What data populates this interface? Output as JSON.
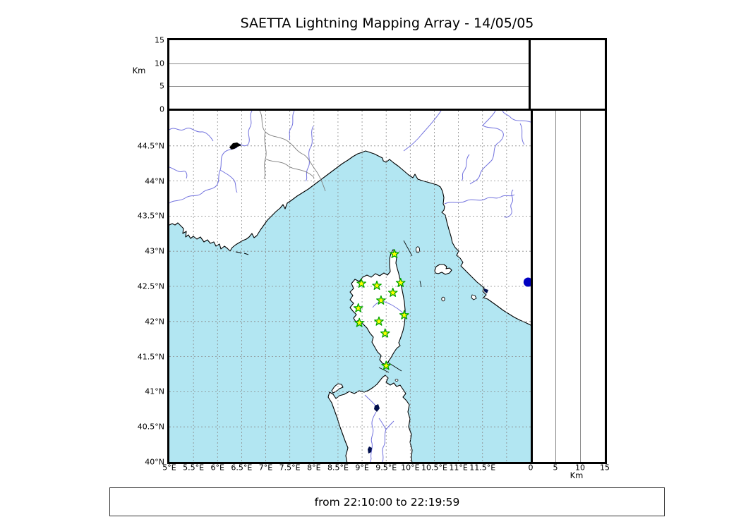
{
  "title": "SAETTA Lightning Mapping Array - 14/05/05",
  "time_label": "from 22:10:00 to 22:19:59",
  "axes": {
    "altitude_label_left": "Km",
    "altitude_label_bottom": "Km",
    "altitude_max": 15,
    "altitude_ticks_left": [
      "15",
      "10",
      "5",
      "0"
    ],
    "altitude_ticks_bottom": [
      "0",
      "5",
      "10",
      "15"
    ],
    "altitude_gridline_values": [
      5,
      10
    ],
    "longitude_ticks": [
      "5°E",
      "5.5°E",
      "6°E",
      "6.5°E",
      "7°E",
      "7.5°E",
      "8°E",
      "8.5°E",
      "9°E",
      "9.5°E",
      "10°E",
      "10.5°E",
      "11°E",
      "11.5°E"
    ],
    "latitude_ticks": [
      "44.5°N",
      "44°N",
      "43.5°N",
      "43°N",
      "42.5°N",
      "42°N",
      "41.5°N",
      "41°N",
      "40.5°N",
      "40°N"
    ]
  },
  "map": {
    "lon_min": 5,
    "lon_max": 12,
    "lat_min": 40,
    "lat_max": 45,
    "grid_step_deg": 0.5,
    "colors": {
      "sea": "#b2e6f2",
      "land": "#ffffff",
      "coast": "#000000",
      "river": "#7272de",
      "country_border": "#7d7d7d",
      "lake": "#000e4d",
      "lake_dot": "#0000c2",
      "grid": "#8a8a8a",
      "station_fill": "#ffff00",
      "station_stroke": "#00a400"
    },
    "lake_dot": {
      "lon": 11.95,
      "lat": 42.56
    }
  },
  "stations": [
    {
      "lon": 9.36,
      "lat": 42.96
    },
    {
      "lon": 8.72,
      "lat": 42.54
    },
    {
      "lon": 9.02,
      "lat": 42.51
    },
    {
      "lon": 9.48,
      "lat": 42.55
    },
    {
      "lon": 9.33,
      "lat": 42.41
    },
    {
      "lon": 9.1,
      "lat": 42.3
    },
    {
      "lon": 8.66,
      "lat": 42.19
    },
    {
      "lon": 9.55,
      "lat": 42.09
    },
    {
      "lon": 8.68,
      "lat": 41.98
    },
    {
      "lon": 9.06,
      "lat": 42.0
    },
    {
      "lon": 9.18,
      "lat": 41.83
    },
    {
      "lon": 9.2,
      "lat": 41.37
    }
  ]
}
